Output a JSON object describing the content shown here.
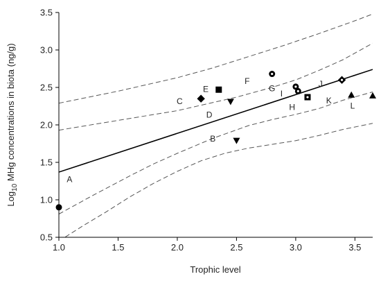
{
  "chart_data": {
    "type": "scatter",
    "title": "",
    "xlabel": "Trophic level",
    "ylabel": {
      "prefix": "Log",
      "subscript": "10",
      "suffix": " MHg concentrations in biota (ng/g)"
    },
    "xlim": [
      1.0,
      3.65
    ],
    "ylim": [
      0.5,
      3.5
    ],
    "x_ticks": [
      1.0,
      1.5,
      2.0,
      2.5,
      3.0,
      3.5
    ],
    "x_tick_labels": [
      "1.0",
      "1.5",
      "2.0",
      "2.5",
      "3.0",
      "3.5"
    ],
    "y_ticks": [
      0.5,
      1.0,
      1.5,
      2.0,
      2.5,
      3.0,
      3.5
    ],
    "y_tick_labels": [
      "0.5",
      "1.0",
      "1.5",
      "2.0",
      "2.5",
      "3.0",
      "3.5"
    ],
    "grid": false,
    "points": [
      {
        "x": 1.0,
        "y": 0.9,
        "marker": "circle"
      },
      {
        "x": 2.2,
        "y": 2.35,
        "marker": "diamond"
      },
      {
        "x": 2.35,
        "y": 2.47,
        "marker": "square"
      },
      {
        "x": 2.45,
        "y": 2.31,
        "marker": "triangle-down"
      },
      {
        "x": 2.5,
        "y": 1.79,
        "marker": "triangle-down"
      },
      {
        "x": 2.8,
        "y": 2.68,
        "marker": "circle-dot"
      },
      {
        "x": 3.0,
        "y": 2.51,
        "marker": "circle-dot"
      },
      {
        "x": 3.02,
        "y": 2.45,
        "marker": "circle-dot"
      },
      {
        "x": 3.1,
        "y": 2.37,
        "marker": "square-dot"
      },
      {
        "x": 3.39,
        "y": 2.6,
        "marker": "diamond-dot"
      },
      {
        "x": 3.47,
        "y": 2.4,
        "marker": "triangle-up"
      },
      {
        "x": 3.65,
        "y": 2.39,
        "marker": "triangle-up"
      }
    ],
    "point_labels": [
      {
        "text": "A",
        "x": 1.09,
        "y": 1.28
      },
      {
        "text": "B",
        "x": 2.3,
        "y": 1.82
      },
      {
        "text": "C",
        "x": 2.02,
        "y": 2.32
      },
      {
        "text": "D",
        "x": 2.27,
        "y": 2.14
      },
      {
        "text": "E",
        "x": 2.24,
        "y": 2.48
      },
      {
        "text": "F",
        "x": 2.59,
        "y": 2.59
      },
      {
        "text": "G",
        "x": 2.8,
        "y": 2.49
      },
      {
        "text": "H",
        "x": 2.97,
        "y": 2.24
      },
      {
        "text": "I",
        "x": 2.88,
        "y": 2.42
      },
      {
        "text": "J",
        "x": 3.21,
        "y": 2.55
      },
      {
        "text": "K",
        "x": 3.28,
        "y": 2.33
      },
      {
        "text": "L",
        "x": 3.48,
        "y": 2.26
      }
    ],
    "regression": {
      "x1": 1.0,
      "y1": 1.37,
      "x2": 3.65,
      "y2": 2.74
    },
    "confidence_band": {
      "upper": [
        [
          1.0,
          2.29
        ],
        [
          1.5,
          2.45
        ],
        [
          2.0,
          2.63
        ],
        [
          2.3,
          2.76
        ],
        [
          2.6,
          2.91
        ],
        [
          2.9,
          3.06
        ],
        [
          3.2,
          3.22
        ],
        [
          3.5,
          3.39
        ],
        [
          3.65,
          3.48
        ]
      ],
      "lower": [
        [
          1.0,
          0.45
        ],
        [
          1.2,
          0.65
        ],
        [
          1.4,
          0.84
        ],
        [
          1.6,
          1.04
        ],
        [
          1.8,
          1.22
        ],
        [
          2.0,
          1.38
        ],
        [
          2.2,
          1.52
        ],
        [
          2.4,
          1.62
        ],
        [
          2.6,
          1.69
        ],
        [
          2.8,
          1.74
        ],
        [
          3.0,
          1.79
        ],
        [
          3.2,
          1.86
        ],
        [
          3.4,
          1.94
        ],
        [
          3.65,
          2.02
        ]
      ]
    },
    "prediction_band": {
      "upper": [
        [
          1.0,
          1.93
        ],
        [
          1.5,
          2.06
        ],
        [
          2.0,
          2.19
        ],
        [
          2.5,
          2.37
        ],
        [
          2.8,
          2.5
        ],
        [
          3.0,
          2.6
        ],
        [
          3.2,
          2.73
        ],
        [
          3.4,
          2.87
        ],
        [
          3.65,
          3.09
        ]
      ],
      "lower": [
        [
          1.0,
          0.81
        ],
        [
          1.3,
          1.07
        ],
        [
          1.6,
          1.32
        ],
        [
          1.8,
          1.48
        ],
        [
          2.0,
          1.62
        ],
        [
          2.3,
          1.82
        ],
        [
          2.6,
          1.99
        ],
        [
          2.8,
          2.07
        ],
        [
          3.0,
          2.14
        ],
        [
          3.2,
          2.22
        ],
        [
          3.4,
          2.33
        ],
        [
          3.65,
          2.44
        ]
      ]
    },
    "colors": {
      "marker": "#000000",
      "line": "#000000",
      "band": "#555555"
    }
  }
}
